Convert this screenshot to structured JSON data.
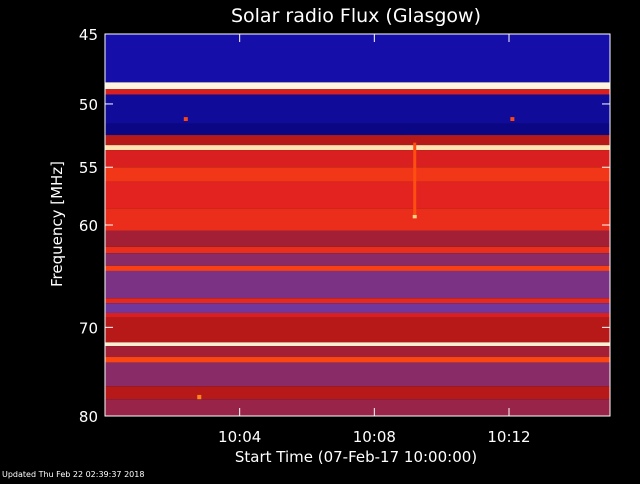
{
  "chart_data": {
    "type": "heatmap",
    "title": "Solar radio Flux (Glasgow)",
    "xlabel": "Start Time (07-Feb-17 10:00:00)",
    "ylabel": "Frequency [MHz]",
    "footer": "Updated Thu Feb 22 02:39:37 2018",
    "x_range_minutes": [
      0,
      15
    ],
    "xlim": [
      "10:00",
      "10:15"
    ],
    "ylim": [
      45,
      80
    ],
    "y_scale": "log",
    "y_invert": true,
    "x_ticks": [
      {
        "minute": 4,
        "label": "10:04"
      },
      {
        "minute": 8,
        "label": "10:08"
      },
      {
        "minute": 12,
        "label": "10:12"
      }
    ],
    "y_ticks": [
      {
        "value": 45,
        "label": "45"
      },
      {
        "value": 50,
        "label": "50"
      },
      {
        "value": 55,
        "label": "55"
      },
      {
        "value": 60,
        "label": "60"
      },
      {
        "value": 70,
        "label": "70"
      },
      {
        "value": 80,
        "label": "80"
      }
    ],
    "colormap": [
      "#000060",
      "#1e14c8",
      "#6a3aa8",
      "#b01818",
      "#e02020",
      "#ff4a10",
      "#ffb020",
      "#ffffff"
    ],
    "frequency_bands": [
      {
        "from": 45.0,
        "to": 48.4,
        "level": 0.1
      },
      {
        "from": 48.4,
        "to": 48.9,
        "level": 0.98
      },
      {
        "from": 48.9,
        "to": 49.3,
        "level": 0.55
      },
      {
        "from": 49.3,
        "to": 51.5,
        "level": 0.08
      },
      {
        "from": 51.5,
        "to": 52.4,
        "level": 0.05
      },
      {
        "from": 52.4,
        "to": 53.2,
        "level": 0.45
      },
      {
        "from": 53.2,
        "to": 53.6,
        "level": 0.95
      },
      {
        "from": 53.6,
        "to": 55.0,
        "level": 0.55
      },
      {
        "from": 55.0,
        "to": 56.2,
        "level": 0.65
      },
      {
        "from": 56.2,
        "to": 58.5,
        "level": 0.58
      },
      {
        "from": 58.5,
        "to": 60.5,
        "level": 0.62
      },
      {
        "from": 60.5,
        "to": 62.0,
        "level": 0.4
      },
      {
        "from": 62.0,
        "to": 62.6,
        "level": 0.62
      },
      {
        "from": 62.6,
        "to": 63.8,
        "level": 0.35
      },
      {
        "from": 63.8,
        "to": 64.3,
        "level": 0.68
      },
      {
        "from": 64.3,
        "to": 67.0,
        "level": 0.32
      },
      {
        "from": 67.0,
        "to": 67.5,
        "level": 0.6
      },
      {
        "from": 67.5,
        "to": 68.5,
        "level": 0.3
      },
      {
        "from": 68.5,
        "to": 69.0,
        "level": 0.55
      },
      {
        "from": 69.0,
        "to": 71.6,
        "level": 0.45
      },
      {
        "from": 71.6,
        "to": 72.0,
        "level": 0.97
      },
      {
        "from": 72.0,
        "to": 73.2,
        "level": 0.4
      },
      {
        "from": 73.2,
        "to": 73.8,
        "level": 0.7
      },
      {
        "from": 73.8,
        "to": 76.5,
        "level": 0.35
      },
      {
        "from": 76.5,
        "to": 78.0,
        "level": 0.45
      },
      {
        "from": 78.0,
        "to": 80.0,
        "level": 0.38
      }
    ],
    "features": [
      {
        "minute": 9.2,
        "freq_from": 53.0,
        "freq_to": 59.4,
        "level": 0.72,
        "kind": "vertical_burst"
      },
      {
        "minute": 9.2,
        "freq_from": 59.1,
        "freq_to": 59.4,
        "level": 0.92,
        "kind": "spot"
      },
      {
        "minute": 2.4,
        "freq_from": 51.0,
        "freq_to": 51.3,
        "level": 0.7,
        "kind": "spot"
      },
      {
        "minute": 12.1,
        "freq_from": 51.0,
        "freq_to": 51.3,
        "level": 0.7,
        "kind": "spot"
      },
      {
        "minute": 2.8,
        "freq_from": 77.5,
        "freq_to": 78.0,
        "level": 0.8,
        "kind": "spot"
      }
    ]
  }
}
